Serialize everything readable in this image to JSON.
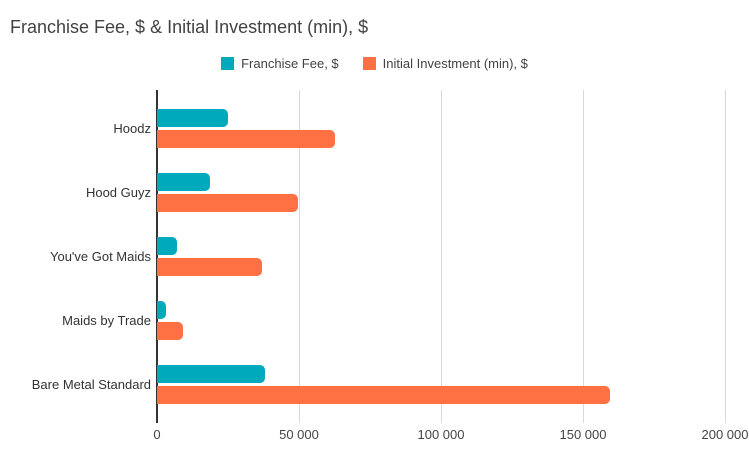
{
  "chart_data": {
    "type": "bar",
    "orientation": "horizontal",
    "title": "Franchise Fee, $ & Initial Investment (min), $",
    "categories": [
      "Hoodz",
      "Hood Guyz",
      "You've Got Maids",
      "Maids by Trade",
      "Bare Metal Standard"
    ],
    "series": [
      {
        "name": "Franchise Fee, $",
        "color": "#00a9bc",
        "values": [
          25000,
          18500,
          7000,
          3000,
          38000
        ]
      },
      {
        "name": "Initial Investment (min), $",
        "color": "#ff7043",
        "values": [
          62500,
          49500,
          37000,
          9000,
          159500
        ]
      }
    ],
    "xlim": [
      0,
      200000
    ],
    "x_ticks": [
      0,
      50000,
      100000,
      150000,
      200000
    ],
    "x_tick_labels": [
      "0",
      "50 000",
      "100 000",
      "150 000",
      "200 000"
    ],
    "grid": "vertical-gridlines-on",
    "legend_position": "top-center",
    "background_color": "#ffffff",
    "title_color": "#424242",
    "axis_label_color": "#444444",
    "category_label_color": "#333333",
    "gridline_color": "#d9d9d9",
    "axis_line_color": "#333333"
  }
}
